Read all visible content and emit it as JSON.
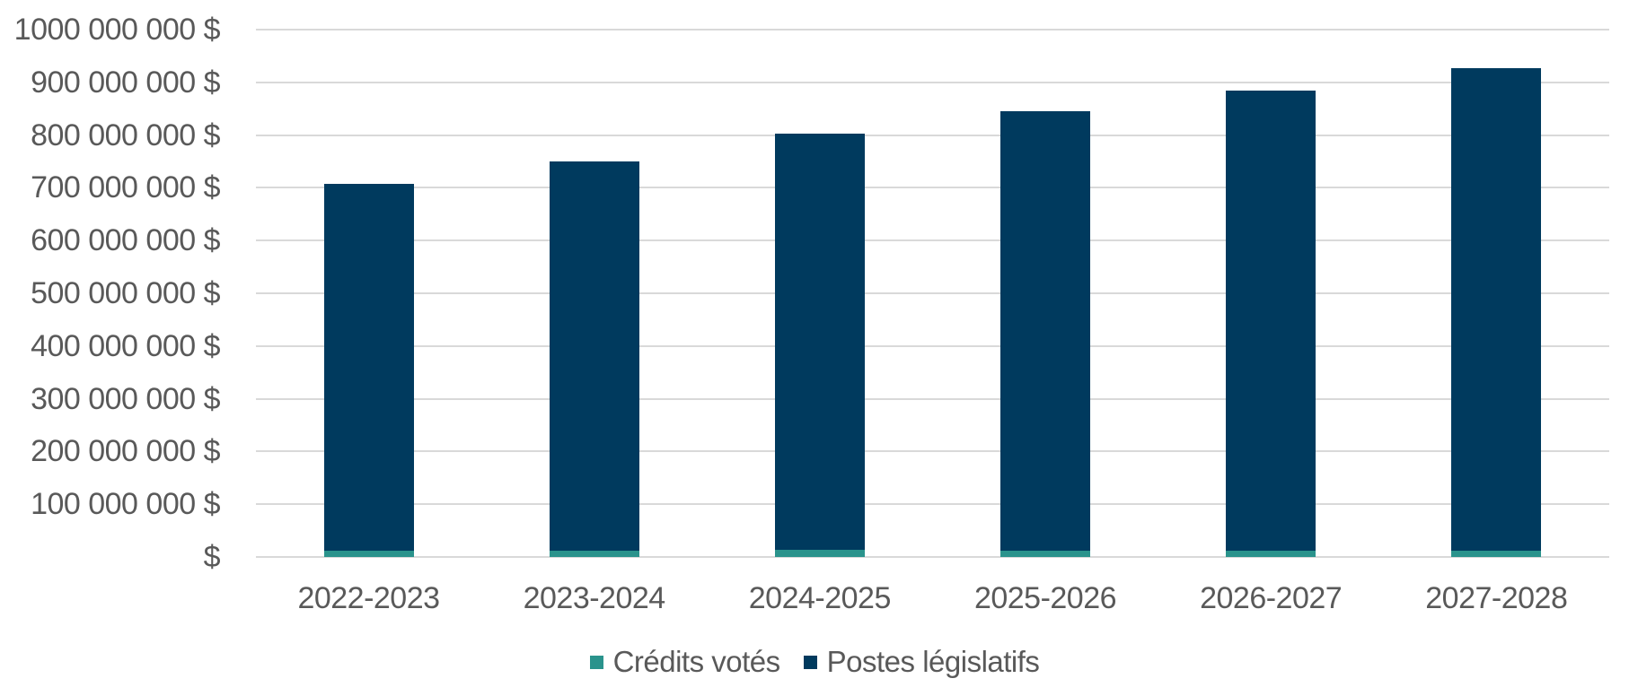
{
  "chart_data": {
    "type": "bar",
    "stacked": true,
    "title": "",
    "xlabel": "",
    "ylabel": "",
    "categories": [
      "2022-2023",
      "2023-2024",
      "2024-2025",
      "2025-2026",
      "2026-2027",
      "2027-2028"
    ],
    "series": [
      {
        "name": "Crédits votés",
        "color": "#2A938C",
        "values": [
          12000000,
          12000000,
          14000000,
          12000000,
          12000000,
          12000000
        ]
      },
      {
        "name": "Postes législatifs",
        "color": "#003A5E",
        "values": [
          696000000,
          738000000,
          789000000,
          833000000,
          872000000,
          915000000
        ]
      }
    ],
    "totals": [
      708000000,
      750000000,
      803000000,
      845000000,
      884000000,
      927000000
    ],
    "ylim": [
      0,
      1000000000
    ],
    "y_ticks": [
      {
        "value": 0,
        "label": "$"
      },
      {
        "value": 100000000,
        "label": "100 000 000 $"
      },
      {
        "value": 200000000,
        "label": "200 000 000 $"
      },
      {
        "value": 300000000,
        "label": "300 000 000 $"
      },
      {
        "value": 400000000,
        "label": "400 000 000 $"
      },
      {
        "value": 500000000,
        "label": "500 000 000 $"
      },
      {
        "value": 600000000,
        "label": "600 000 000 $"
      },
      {
        "value": 700000000,
        "label": "700 000 000 $"
      },
      {
        "value": 800000000,
        "label": "800 000 000 $"
      },
      {
        "value": 900000000,
        "label": "900 000 000 $"
      },
      {
        "value": 1000000000,
        "label": "1000 000 000 $"
      }
    ],
    "grid": true,
    "legend_position": "bottom",
    "colors": {
      "text": "#595959",
      "gridline": "#D9D9D9",
      "background": "#FFFFFF"
    }
  }
}
